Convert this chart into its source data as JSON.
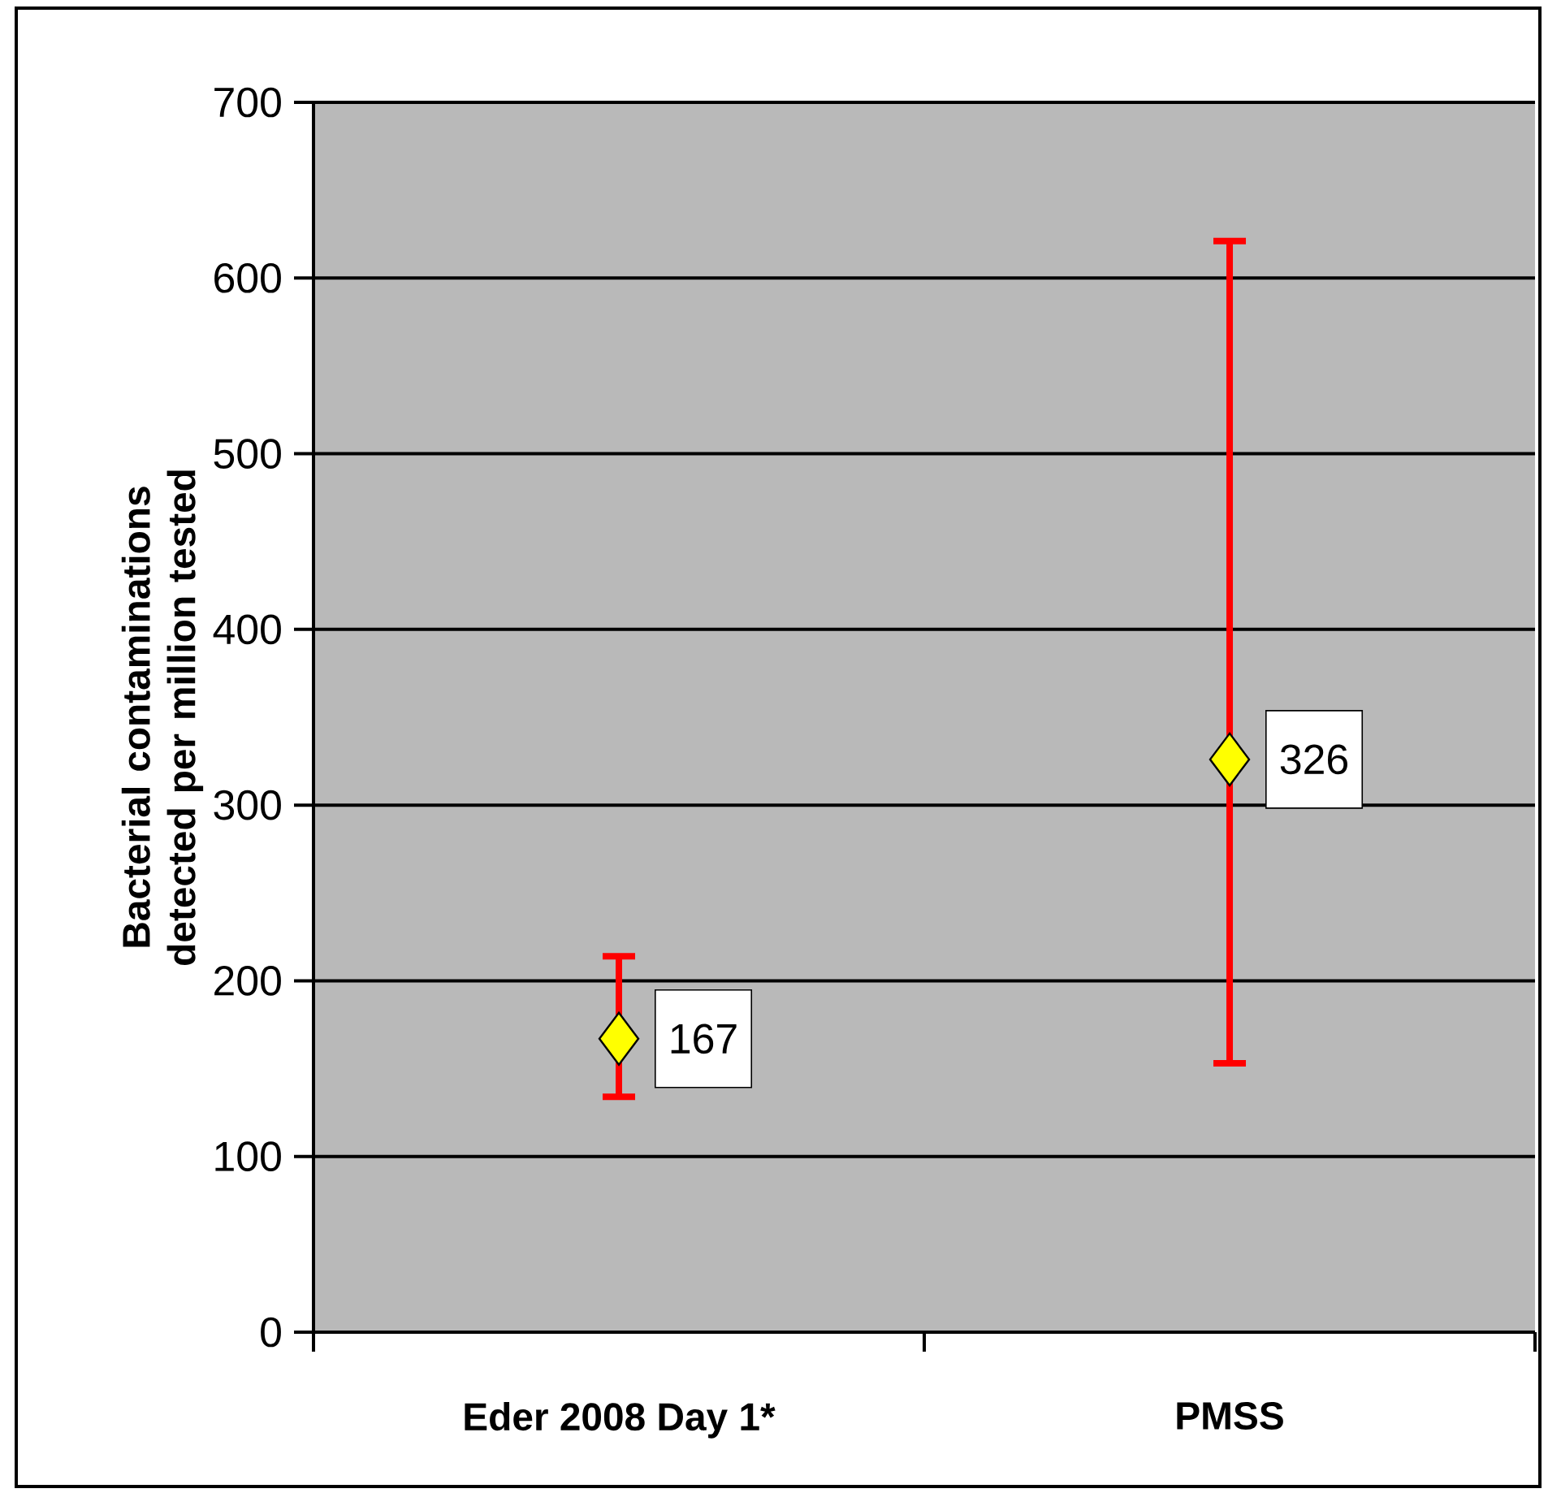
{
  "chart_data": {
    "type": "scatter",
    "ylabel": "Bacterial contaminations detected per million tested",
    "categories": [
      "Eder 2008 Day 1*",
      "PMSS"
    ],
    "series": [
      {
        "color": "#ffff00",
        "values": [
          167,
          326
        ],
        "errors": [
          [
            134,
            214
          ],
          [
            153,
            621
          ]
        ]
      }
    ],
    "ylim": [
      0,
      700
    ],
    "yticks": [
      0,
      100,
      200,
      300,
      400,
      500,
      600,
      700
    ],
    "grid": "y",
    "marker": "diamond",
    "data_labels": true
  }
}
